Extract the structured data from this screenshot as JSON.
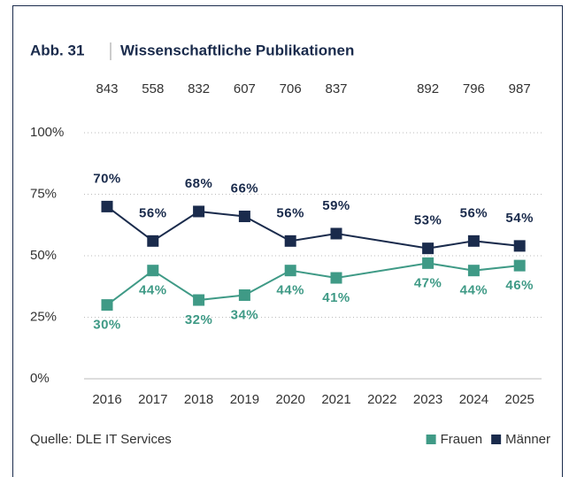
{
  "chart_data": {
    "type": "line",
    "label": "Abb. 31",
    "title": "Wissenschaftliche Publikationen",
    "source": "Quelle: DLE IT Services",
    "categories": [
      "2016",
      "2017",
      "2018",
      "2019",
      "2020",
      "2021",
      "2022",
      "2023",
      "2024",
      "2025"
    ],
    "totals": [
      843,
      558,
      832,
      607,
      706,
      837,
      null,
      892,
      796,
      987
    ],
    "series": [
      {
        "name": "Frauen",
        "color": "#3f9a86",
        "values": [
          30,
          44,
          32,
          34,
          44,
          41,
          null,
          47,
          44,
          46
        ],
        "value_labels": [
          "30%",
          "44%",
          "32%",
          "34%",
          "44%",
          "41%",
          null,
          "47%",
          "44%",
          "46%"
        ],
        "label_side": "below"
      },
      {
        "name": "Männer",
        "color": "#1a2b4c",
        "values": [
          70,
          56,
          68,
          66,
          56,
          59,
          null,
          53,
          56,
          54
        ],
        "value_labels": [
          "70%",
          "56%",
          "68%",
          "66%",
          "56%",
          "59%",
          null,
          "53%",
          "56%",
          "54%"
        ],
        "label_side": "above"
      }
    ],
    "ylim": [
      0,
      100
    ],
    "yticks": [
      {
        "value": 0,
        "label": "0%"
      },
      {
        "value": 25,
        "label": "25%"
      },
      {
        "value": 50,
        "label": "50%"
      },
      {
        "value": 75,
        "label": "75%"
      },
      {
        "value": 100,
        "label": "100%"
      }
    ],
    "grid": true,
    "span_gaps": true,
    "legend": "bottom-right"
  }
}
